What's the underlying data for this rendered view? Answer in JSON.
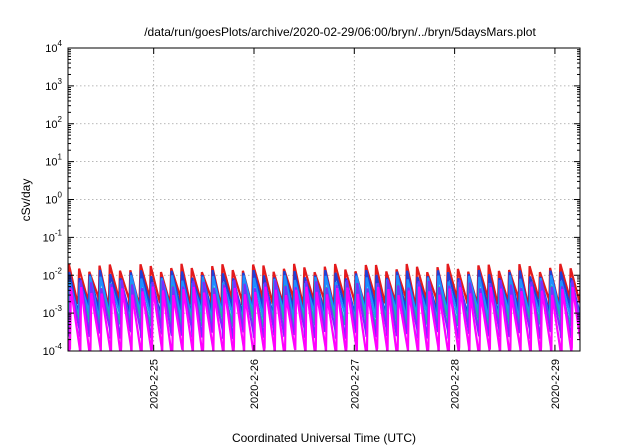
{
  "chart_data": {
    "type": "line",
    "title": "/data/run/goesPlots/archive/2020-02-29/06:00/bryn/../bryn/5daysMars.plot",
    "xlabel": "Coordinated Universal Time (UTC)",
    "ylabel": "cSv/day",
    "yscale": "log",
    "ylim": [
      0.0001,
      10000
    ],
    "xlim": [
      "2020-02-24T03:30",
      "2020-02-29T06:00"
    ],
    "grid": true,
    "y_ticks": [
      {
        "value": 0.0001,
        "base": "10",
        "exp": "-4"
      },
      {
        "value": 0.001,
        "base": "10",
        "exp": "-3"
      },
      {
        "value": 0.01,
        "base": "10",
        "exp": "-2"
      },
      {
        "value": 0.1,
        "base": "10",
        "exp": "-1"
      },
      {
        "value": 1,
        "base": "10",
        "exp": "0"
      },
      {
        "value": 10,
        "base": "10",
        "exp": "1"
      },
      {
        "value": 100,
        "base": "10",
        "exp": "2"
      },
      {
        "value": 1000,
        "base": "10",
        "exp": "3"
      },
      {
        "value": 10000,
        "base": "10",
        "exp": "4"
      }
    ],
    "x_ticks": [
      {
        "value": "2020-02-25T00:00",
        "label": "2020-2-25"
      },
      {
        "value": "2020-02-26T00:00",
        "label": "2020-2-26"
      },
      {
        "value": "2020-02-27T00:00",
        "label": "2020-2-27"
      },
      {
        "value": "2020-02-28T00:00",
        "label": "2020-2-28"
      },
      {
        "value": "2020-02-29T00:00",
        "label": "2020-2-29"
      }
    ],
    "pattern": {
      "period_hours": 2.45,
      "peak_values": [
        0.015,
        0.012,
        0.009,
        0.007,
        0.005
      ],
      "trough_values": [
        0.002,
        0.0012,
        0.0007,
        0.0004,
        0.0002
      ]
    },
    "series": [
      {
        "color": "#e41a1c",
        "peak": 0.016,
        "trough": 0.0022
      },
      {
        "color": "#1f3fd8",
        "peak": 0.011,
        "trough": 0.0013
      },
      {
        "color": "#1e90ff",
        "peak": 0.008,
        "trough": 0.0009
      },
      {
        "color": "#20b2aa",
        "peak": 0.005,
        "trough": 0.0006
      },
      {
        "color": "#7b2cff",
        "peak": 0.006,
        "trough": 0.0003
      },
      {
        "color": "#ff00ff",
        "peak": 0.004,
        "trough": 0.0001
      }
    ]
  }
}
